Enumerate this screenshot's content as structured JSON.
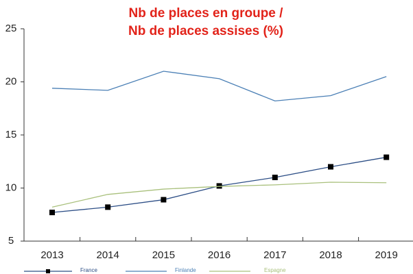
{
  "chart_data": {
    "type": "line",
    "title": [
      "Nb de places en groupe /",
      "Nb de places assises (%)"
    ],
    "categories": [
      "2013",
      "2014",
      "2015",
      "2016",
      "2017",
      "2018",
      "2019"
    ],
    "series": [
      {
        "name": "France",
        "color": "#2b4d85",
        "marker": "square",
        "values": [
          7.7,
          8.2,
          8.9,
          10.2,
          11.0,
          12.0,
          12.9
        ]
      },
      {
        "name": "Finlande",
        "color": "#4a7fb5",
        "values": [
          19.4,
          19.2,
          21.0,
          20.3,
          18.2,
          18.7,
          20.5
        ]
      },
      {
        "name": "Espagne",
        "color": "#a9c07c",
        "values": [
          8.2,
          9.4,
          9.9,
          10.15,
          10.3,
          10.55,
          10.5
        ]
      }
    ],
    "ylim": [
      5,
      25
    ],
    "yticks": [
      5,
      10,
      15,
      20,
      25
    ],
    "legend": "bottom"
  }
}
